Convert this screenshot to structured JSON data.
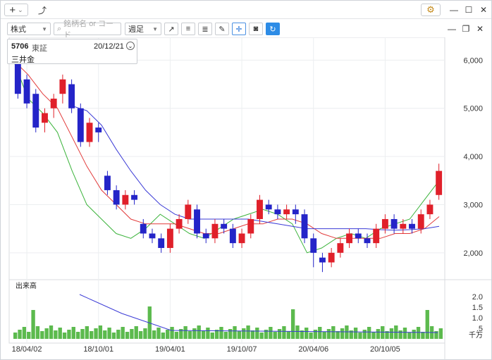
{
  "titlebar": {
    "add_button": "+",
    "add_chevron": "⌄",
    "trend_icon": "⤴",
    "gear_icon": "⚙"
  },
  "window_controls": {
    "minimize": "—",
    "maximize": "☐",
    "close": "✕"
  },
  "chart_controls": {
    "minimize": "—",
    "restore": "❐",
    "close": "✕"
  },
  "toolbar": {
    "market_select": "株式",
    "search_placeholder": "銘柄名 or コード",
    "period_select": "週足"
  },
  "security": {
    "code": "5706",
    "exchange": "東証",
    "date": "20/12/21",
    "name": "三井金"
  },
  "volume_label": "出来高",
  "volume_unit": "千万",
  "chart_data": {
    "type": "candlestick",
    "x_ticks": [
      "18/04/02",
      "18/10/01",
      "19/04/01",
      "19/10/07",
      "20/04/06",
      "20/10/05"
    ],
    "price_axis": {
      "ticks": [
        "6,000",
        "5,000",
        "4,000",
        "3,000",
        "2,000"
      ],
      "range": [
        1500,
        6400
      ]
    },
    "volume_axis": {
      "ticks": [
        "2.0",
        "1.5",
        "1.0",
        ".5"
      ],
      "unit": "千万",
      "range": [
        0,
        2.6
      ]
    },
    "moving_averages": [
      {
        "color": "#3bb33b",
        "approx": [
          6000,
          5200,
          4900,
          4500,
          3700,
          3000,
          2700,
          2400,
          2300,
          2500,
          2800,
          2600,
          2400,
          2300,
          2500,
          2700,
          2800,
          2900,
          2800,
          2600,
          2000,
          2100,
          2300,
          2400,
          2300,
          2500,
          2600,
          2700,
          3100,
          3500
        ]
      },
      {
        "color": "#e23a3a",
        "approx": [
          6000,
          5700,
          5300,
          5000,
          4400,
          3800,
          3300,
          3000,
          2700,
          2600,
          2600,
          2600,
          2500,
          2400,
          2400,
          2500,
          2600,
          2600,
          2700,
          2700,
          2600,
          2400,
          2300,
          2300,
          2300,
          2300,
          2400,
          2400,
          2500,
          2750
        ]
      },
      {
        "color": "#3b3bd6",
        "approx": [
          null,
          null,
          null,
          null,
          5050,
          4950,
          4650,
          4150,
          3700,
          3300,
          3000,
          2800,
          2700,
          2700,
          2700,
          2700,
          2700,
          2650,
          2600,
          2550,
          2500,
          2500,
          2500,
          2500,
          2500,
          2480,
          2470,
          2480,
          2500,
          2550
        ]
      }
    ],
    "candles": [
      [
        6200,
        5300,
        6300,
        5200
      ],
      [
        5600,
        5100,
        5700,
        5000
      ],
      [
        5300,
        4600,
        5400,
        4500
      ],
      [
        4700,
        4900,
        5000,
        4500
      ],
      [
        5000,
        5200,
        5300,
        4800
      ],
      [
        5300,
        5600,
        5700,
        5100
      ],
      [
        5500,
        5000,
        5600,
        4900
      ],
      [
        5000,
        4300,
        5100,
        4200
      ],
      [
        4300,
        4700,
        4800,
        4200
      ],
      [
        4600,
        4500,
        4700,
        4300
      ],
      [
        3600,
        3300,
        3700,
        3200
      ],
      [
        3300,
        3000,
        3400,
        2900
      ],
      [
        3000,
        3200,
        3300,
        2900
      ],
      [
        3200,
        3100,
        3300,
        3000
      ],
      [
        2600,
        2400,
        2700,
        2300
      ],
      [
        2400,
        2300,
        2500,
        2200
      ],
      [
        2300,
        2100,
        2400,
        2000
      ],
      [
        2100,
        2500,
        2600,
        2000
      ],
      [
        2500,
        2700,
        2800,
        2400
      ],
      [
        2700,
        3000,
        3100,
        2600
      ],
      [
        2900,
        2400,
        3000,
        2300
      ],
      [
        2400,
        2300,
        2500,
        2200
      ],
      [
        2300,
        2600,
        2700,
        2200
      ],
      [
        2600,
        2500,
        2700,
        2400
      ],
      [
        2500,
        2200,
        2600,
        2100
      ],
      [
        2200,
        2400,
        2500,
        2100
      ],
      [
        2400,
        2700,
        2800,
        2300
      ],
      [
        2700,
        3100,
        3200,
        2600
      ],
      [
        3000,
        2900,
        3100,
        2800
      ],
      [
        2900,
        2800,
        3000,
        2700
      ],
      [
        2800,
        2900,
        3000,
        2700
      ],
      [
        2900,
        2800,
        3000,
        2600
      ],
      [
        2800,
        2300,
        2900,
        2200
      ],
      [
        2300,
        2000,
        2400,
        1700
      ],
      [
        1900,
        1800,
        2000,
        1600
      ],
      [
        1800,
        2000,
        2100,
        1700
      ],
      [
        2000,
        2200,
        2300,
        1900
      ],
      [
        2200,
        2400,
        2500,
        2100
      ],
      [
        2400,
        2300,
        2500,
        2200
      ],
      [
        2300,
        2200,
        2400,
        2100
      ],
      [
        2200,
        2500,
        2600,
        2100
      ],
      [
        2500,
        2700,
        2800,
        2400
      ],
      [
        2700,
        2500,
        2800,
        2400
      ],
      [
        2500,
        2600,
        2700,
        2400
      ],
      [
        2600,
        2500,
        2700,
        2400
      ],
      [
        2500,
        2800,
        2900,
        2400
      ],
      [
        2800,
        3000,
        3100,
        2700
      ],
      [
        3200,
        3700,
        3850,
        3100
      ]
    ]
  }
}
